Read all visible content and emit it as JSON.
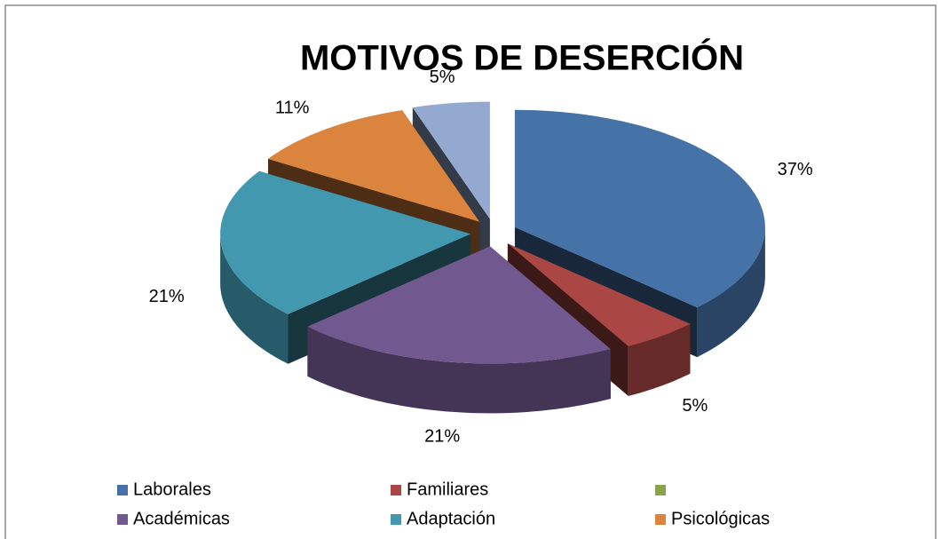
{
  "chart_data": {
    "type": "pie",
    "title": "MOTIVOS DE DESERCIÓN",
    "categories": [
      "Laborales",
      "Familiares",
      null,
      "Académicas",
      "Adaptación",
      "Psicológicas",
      null
    ],
    "values": [
      37,
      5,
      0,
      21,
      21,
      11,
      5
    ],
    "value_labels": [
      "37%",
      "5%",
      null,
      "21%",
      "21%",
      "11%",
      "5%"
    ],
    "colors": [
      "#4572a7",
      "#aa4643",
      "#89a54e",
      "#71588f",
      "#4198af",
      "#db843d",
      "#93a9cf"
    ],
    "legend": "bottom"
  }
}
